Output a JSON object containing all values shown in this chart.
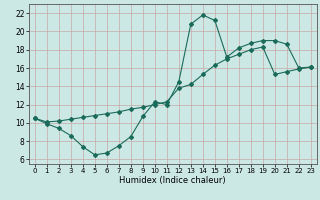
{
  "xlabel": "Humidex (Indice chaleur)",
  "background_color": "#cce8e5",
  "grid_color": "#b0d0cd",
  "line_color": "#1a6b5a",
  "xlim": [
    -0.5,
    23.5
  ],
  "ylim": [
    5.5,
    23.0
  ],
  "xticks": [
    0,
    1,
    2,
    3,
    4,
    5,
    6,
    7,
    8,
    9,
    10,
    11,
    12,
    13,
    14,
    15,
    16,
    17,
    18,
    19,
    20,
    21,
    22,
    23
  ],
  "yticks": [
    6,
    8,
    10,
    12,
    14,
    16,
    18,
    20,
    22
  ],
  "line1_x": [
    0,
    1,
    2,
    3,
    4,
    5,
    6,
    7,
    8,
    9,
    10,
    11,
    12,
    13,
    14,
    15,
    16,
    17,
    18,
    19,
    20,
    21,
    22,
    23
  ],
  "line1_y": [
    10.5,
    9.9,
    9.4,
    8.6,
    7.4,
    6.5,
    6.7,
    7.5,
    8.5,
    10.7,
    12.3,
    12.0,
    14.5,
    20.8,
    21.8,
    21.2,
    17.2,
    18.2,
    18.7,
    19.0,
    19.0,
    18.6,
    16.0,
    16.1
  ],
  "line2_x": [
    0,
    1,
    2,
    3,
    4,
    5,
    6,
    7,
    8,
    9,
    10,
    11,
    12,
    13,
    14,
    15,
    16,
    17,
    18,
    19,
    20,
    21,
    22,
    23
  ],
  "line2_y": [
    10.5,
    10.1,
    10.2,
    10.4,
    10.6,
    10.8,
    11.0,
    11.2,
    11.5,
    11.7,
    12.0,
    12.3,
    13.8,
    14.2,
    15.3,
    16.3,
    17.0,
    17.5,
    18.0,
    18.3,
    15.3,
    15.6,
    15.9,
    16.1
  ],
  "xlabel_fontsize": 6.0,
  "tick_fontsize_x": 5.0,
  "tick_fontsize_y": 5.5
}
